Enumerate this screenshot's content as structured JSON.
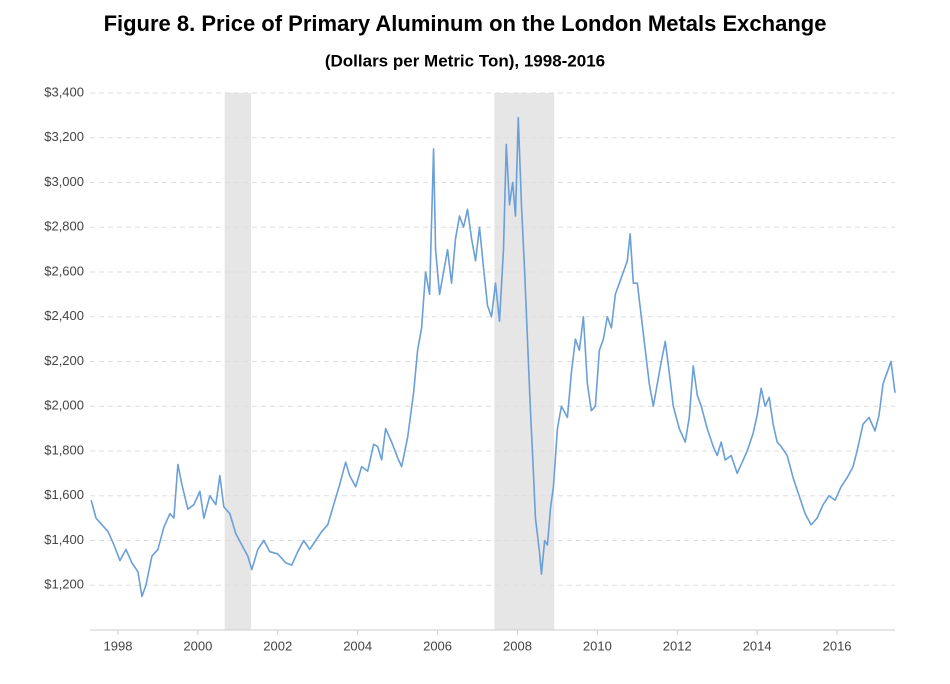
{
  "chart_data": {
    "type": "line",
    "title": "Figure 8. Price of Primary Aluminum on the London Metals Exchange",
    "subtitle": "(Dollars per Metric Ton), 1998-2016",
    "grid": true,
    "shaded_x": [
      [
        2001.17,
        2001.83
      ],
      [
        2007.92,
        2009.42
      ]
    ],
    "shade_color": "#e6e6e6",
    "xlim": [
      1997.8,
      2017.95
    ],
    "xticks": [
      {
        "value": 1998.5,
        "label": "1998"
      },
      {
        "value": 2000.5,
        "label": "2000"
      },
      {
        "value": 2002.5,
        "label": "2002"
      },
      {
        "value": 2004.5,
        "label": "2004"
      },
      {
        "value": 2006.5,
        "label": "2006"
      },
      {
        "value": 2008.5,
        "label": "2008"
      },
      {
        "value": 2010.5,
        "label": "2010"
      },
      {
        "value": 2012.5,
        "label": "2012"
      },
      {
        "value": 2014.5,
        "label": "2014"
      },
      {
        "value": 2016.5,
        "label": "2016"
      }
    ],
    "ylim": [
      1000,
      3400
    ],
    "yticks": [
      {
        "value": 1200,
        "label": "$1,200"
      },
      {
        "value": 1400,
        "label": "$1,400"
      },
      {
        "value": 1600,
        "label": "$1,600"
      },
      {
        "value": 1800,
        "label": "$1,800"
      },
      {
        "value": 2000,
        "label": "$2,000"
      },
      {
        "value": 2200,
        "label": "$2,200"
      },
      {
        "value": 2400,
        "label": "$2,400"
      },
      {
        "value": 2600,
        "label": "$2,600"
      },
      {
        "value": 2800,
        "label": "$2,800"
      },
      {
        "value": 3000,
        "label": "$3,000"
      },
      {
        "value": 3200,
        "label": "$3,200"
      },
      {
        "value": 3400,
        "label": "$3,400"
      }
    ],
    "x": [
      1997.83,
      1997.95,
      1998.1,
      1998.25,
      1998.4,
      1998.55,
      1998.7,
      1998.85,
      1999.0,
      1999.1,
      1999.2,
      1999.35,
      1999.5,
      1999.65,
      1999.8,
      1999.9,
      2000.0,
      2000.1,
      2000.25,
      2000.4,
      2000.55,
      2000.65,
      2000.8,
      2000.95,
      2001.05,
      2001.15,
      2001.3,
      2001.45,
      2001.6,
      2001.75,
      2001.85,
      2002.0,
      2002.15,
      2002.3,
      2002.5,
      2002.7,
      2002.85,
      2003.0,
      2003.15,
      2003.3,
      2003.45,
      2003.6,
      2003.75,
      2003.9,
      2004.05,
      2004.2,
      2004.3,
      2004.45,
      2004.6,
      2004.75,
      2004.9,
      2005.0,
      2005.1,
      2005.2,
      2005.35,
      2005.5,
      2005.6,
      2005.75,
      2005.9,
      2006.0,
      2006.1,
      2006.2,
      2006.3,
      2006.4,
      2006.45,
      2006.55,
      2006.65,
      2006.75,
      2006.85,
      2006.95,
      2007.05,
      2007.15,
      2007.25,
      2007.35,
      2007.45,
      2007.55,
      2007.65,
      2007.75,
      2007.85,
      2007.95,
      2008.05,
      2008.15,
      2008.22,
      2008.3,
      2008.38,
      2008.45,
      2008.52,
      2008.6,
      2008.68,
      2008.75,
      2008.82,
      2008.9,
      2008.95,
      2009.05,
      2009.1,
      2009.18,
      2009.25,
      2009.33,
      2009.4,
      2009.5,
      2009.6,
      2009.75,
      2009.85,
      2009.95,
      2010.05,
      2010.15,
      2010.25,
      2010.35,
      2010.45,
      2010.55,
      2010.65,
      2010.75,
      2010.85,
      2010.95,
      2011.05,
      2011.15,
      2011.25,
      2011.32,
      2011.4,
      2011.5,
      2011.6,
      2011.7,
      2011.8,
      2011.9,
      2012.0,
      2012.1,
      2012.2,
      2012.3,
      2012.4,
      2012.55,
      2012.7,
      2012.8,
      2012.9,
      2013.0,
      2013.1,
      2013.25,
      2013.4,
      2013.5,
      2013.6,
      2013.7,
      2013.85,
      2014.0,
      2014.1,
      2014.25,
      2014.4,
      2014.5,
      2014.6,
      2014.7,
      2014.8,
      2014.9,
      2015.0,
      2015.1,
      2015.25,
      2015.4,
      2015.55,
      2015.7,
      2015.85,
      2016.0,
      2016.15,
      2016.3,
      2016.45,
      2016.6,
      2016.75,
      2016.9,
      2017.0,
      2017.15,
      2017.3,
      2017.45,
      2017.55,
      2017.65,
      2017.75,
      2017.85,
      2017.95
    ],
    "series": [
      {
        "color": "#6a9fd8",
        "values": [
          1580,
          1500,
          1470,
          1440,
          1380,
          1310,
          1360,
          1300,
          1260,
          1150,
          1200,
          1330,
          1360,
          1460,
          1520,
          1500,
          1740,
          1650,
          1540,
          1560,
          1620,
          1500,
          1600,
          1560,
          1690,
          1550,
          1520,
          1430,
          1380,
          1330,
          1270,
          1360,
          1400,
          1350,
          1340,
          1300,
          1290,
          1350,
          1400,
          1360,
          1400,
          1440,
          1470,
          1560,
          1650,
          1750,
          1690,
          1640,
          1730,
          1710,
          1830,
          1820,
          1760,
          1900,
          1840,
          1770,
          1730,
          1860,
          2060,
          2250,
          2350,
          2600,
          2500,
          3150,
          2700,
          2500,
          2600,
          2700,
          2550,
          2750,
          2850,
          2800,
          2880,
          2750,
          2650,
          2800,
          2620,
          2450,
          2400,
          2550,
          2380,
          2700,
          3170,
          2900,
          3000,
          2850,
          3290,
          2900,
          2600,
          2300,
          2000,
          1700,
          1500,
          1350,
          1250,
          1400,
          1380,
          1550,
          1640,
          1900,
          2000,
          1950,
          2150,
          2300,
          2250,
          2400,
          2100,
          1980,
          2000,
          2250,
          2300,
          2400,
          2350,
          2500,
          2550,
          2600,
          2650,
          2770,
          2550,
          2550,
          2400,
          2250,
          2100,
          2000,
          2100,
          2200,
          2290,
          2150,
          2000,
          1900,
          1840,
          1950,
          2180,
          2050,
          2000,
          1900,
          1820,
          1780,
          1840,
          1760,
          1780,
          1700,
          1740,
          1800,
          1880,
          1960,
          2080,
          2000,
          2040,
          1920,
          1840,
          1820,
          1780,
          1680,
          1600,
          1520,
          1470,
          1500,
          1560,
          1600,
          1580,
          1640,
          1680,
          1730,
          1800,
          1920,
          1950,
          1890,
          1960,
          2100,
          2150,
          2200,
          2060
        ]
      }
    ]
  }
}
